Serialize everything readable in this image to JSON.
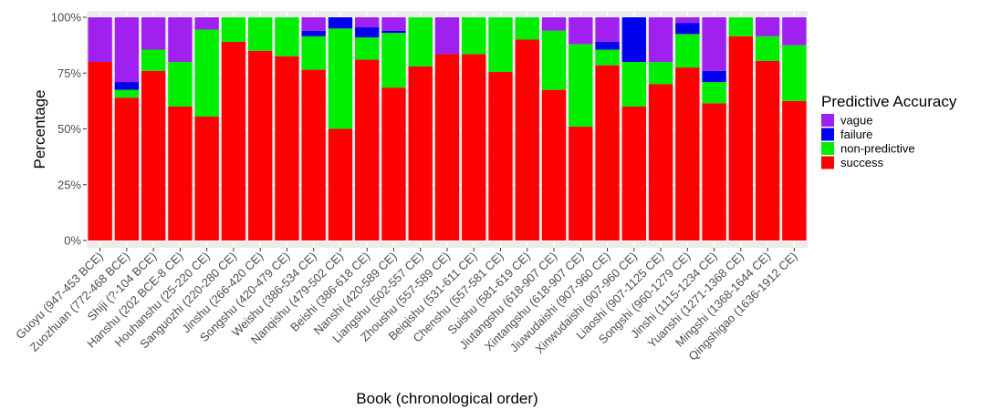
{
  "chart_data": {
    "type": "bar",
    "stacked": true,
    "normalized": true,
    "xlabel": "Book (chronological order)",
    "ylabel": "Percentage",
    "ylim": [
      0,
      1
    ],
    "yticks": [
      "0%",
      "25%",
      "50%",
      "75%",
      "100%"
    ],
    "grid": true,
    "legend": {
      "title": "Predictive Accuracy",
      "position": "right",
      "entries": [
        "vague",
        "failure",
        "non-predictive",
        "success"
      ]
    },
    "categories": [
      "Guoyu (947-453 BCE)",
      "Zuozhuan (772-468 BCE)",
      "Shiji (?-104 BCE)",
      "Hanshu (202 BCE-8 CE)",
      "Houhanshu (25-220 CE)",
      "Sanguozhi (220-280 CE)",
      "Jinshu (266-420 CE)",
      "Songshu (420-479 CE)",
      "Weishu (386-534 CE)",
      "Nanqishu (479-502 CE)",
      "Beishi (386-618 CE)",
      "Nanshi (420-589 CE)",
      "Liangshu (502-557 CE)",
      "Zhoushu (557-589 CE)",
      "Beiqishu (531-611 CE)",
      "Chenshu (557-581 CE)",
      "Suishu (581-619 CE)",
      "Jiutangshu (618-907 CE)",
      "Xintangshu (618-907 CE)",
      "Jiuwudaishi (907-960 CE)",
      "Xinwudaishi (907-960 CE)",
      "Liaoshi (907-1125 CE)",
      "Songshi (960-1279 CE)",
      "Jinshi (1115-1234 CE)",
      "Yuanshi (1271-1368 CE)",
      "Mingshi (1368-1644 CE)",
      "Qingshigao (1636-1912 CE)"
    ],
    "series": [
      {
        "name": "success",
        "color": "#ff0000",
        "values": [
          0.8,
          0.64,
          0.76,
          0.6,
          0.555,
          0.89,
          0.85,
          0.825,
          0.765,
          0.5,
          0.81,
          0.685,
          0.78,
          0.835,
          0.835,
          0.755,
          0.9,
          0.675,
          0.51,
          0.785,
          0.6,
          0.7,
          0.775,
          0.615,
          0.915,
          0.805,
          0.625
        ]
      },
      {
        "name": "non-predictive",
        "color": "#00ee00",
        "values": [
          0.0,
          0.035,
          0.095,
          0.2,
          0.39,
          0.11,
          0.15,
          0.175,
          0.15,
          0.45,
          0.1,
          0.245,
          0.22,
          0.0,
          0.165,
          0.245,
          0.1,
          0.265,
          0.37,
          0.07,
          0.2,
          0.1,
          0.15,
          0.095,
          0.085,
          0.11,
          0.25
        ]
      },
      {
        "name": "failure",
        "color": "#0000ee",
        "values": [
          0.0,
          0.035,
          0.0,
          0.0,
          0.0,
          0.0,
          0.0,
          0.0,
          0.025,
          0.05,
          0.045,
          0.01,
          0.0,
          0.0,
          0.0,
          0.0,
          0.0,
          0.0,
          0.0,
          0.035,
          0.2,
          0.0,
          0.05,
          0.05,
          0.0,
          0.0,
          0.0
        ]
      },
      {
        "name": "vague",
        "color": "#a020f0",
        "values": [
          0.2,
          0.29,
          0.145,
          0.2,
          0.055,
          0.0,
          0.0,
          0.0,
          0.06,
          0.0,
          0.045,
          0.06,
          0.0,
          0.165,
          0.0,
          0.0,
          0.0,
          0.06,
          0.12,
          0.11,
          0.0,
          0.2,
          0.025,
          0.24,
          0.0,
          0.085,
          0.125
        ]
      }
    ]
  }
}
